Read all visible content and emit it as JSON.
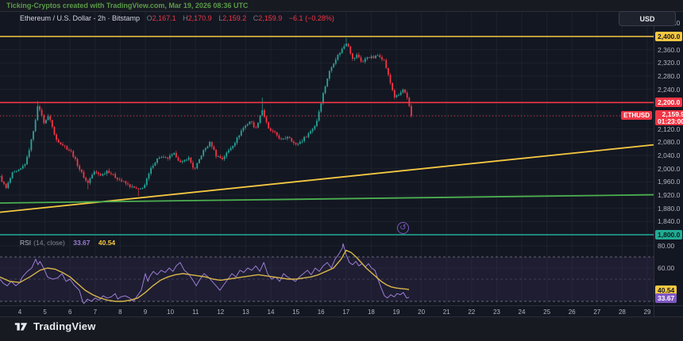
{
  "watermark": "Ticking-Cryptos created with TradingView.com, Mar 19, 2026 08:36 UTC",
  "toolbar": {
    "currency_label": "USD"
  },
  "legend": {
    "title": "Ethereum / U.S. Dollar - 2h · Bitstamp",
    "ohlc": [
      {
        "k": "O",
        "v": "2,167.1"
      },
      {
        "k": "H",
        "v": "2,170.9"
      },
      {
        "k": "L",
        "v": "2,159.2"
      },
      {
        "k": "C",
        "v": "2,159.9"
      }
    ],
    "change": "−6.1 (−0.28%)"
  },
  "price_scale": {
    "ticks": [
      {
        "label": "2,440.0",
        "value": 2440
      },
      {
        "label": "2,360.0",
        "value": 2360
      },
      {
        "label": "2,320.0",
        "value": 2320
      },
      {
        "label": "2,280.0",
        "value": 2280
      },
      {
        "label": "2,240.0",
        "value": 2240
      },
      {
        "label": "2,120.0",
        "value": 2120
      },
      {
        "label": "2,080.0",
        "value": 2080
      },
      {
        "label": "2,040.0",
        "value": 2040
      },
      {
        "label": "2,000.0",
        "value": 2000
      },
      {
        "label": "1,960.0",
        "value": 1960
      },
      {
        "label": "1,920.0",
        "value": 1920
      },
      {
        "label": "1,880.0",
        "value": 1880
      },
      {
        "label": "1,840.0",
        "value": 1840
      }
    ],
    "badge_yellow": "2,400.0",
    "badge_red": "2,200.0",
    "badge_teal": "1,800.0",
    "last_badge": {
      "symbol": "ETHUSD",
      "price": "2,159.9",
      "countdown": "01:23:00"
    }
  },
  "rsi_pane": {
    "title": "RSI",
    "params": "(14, close)",
    "purple_value": "33.67",
    "yellow_value": "40.54",
    "ticks": [
      {
        "label": "80.00",
        "value": 80
      },
      {
        "label": "60.00",
        "value": 60
      }
    ],
    "badge_yellow": "40.54",
    "badge_purple": "33.67"
  },
  "time_scale": {
    "days": [
      4,
      5,
      6,
      7,
      8,
      9,
      10,
      11,
      12,
      13,
      14,
      15,
      16,
      17,
      18,
      19,
      20,
      21,
      22,
      23,
      24,
      25,
      26,
      27,
      28,
      29
    ]
  },
  "footer": {
    "logo_text": "TradingView"
  },
  "replay_icon": {
    "glyph": "↺"
  },
  "colors": {
    "up": "#26a69a",
    "down": "#f23645",
    "yellow": "#f5c842",
    "teal": "#22ab94",
    "green": "#4caf50",
    "purple": "#7e57c2",
    "ma_yellow": "#d9b64a",
    "rsi_purple": "#9b7dd4",
    "watermark_green": "#5b9a4a",
    "chart_bg": "#131722",
    "axis_text": "#b2b5be"
  },
  "chart_data": [
    {
      "type": "candlestick",
      "symbol": "ETHUSD",
      "exchange": "Bitstamp",
      "interval": "2h",
      "x_axis": "Day of month, March 2026",
      "xlim": [
        3.2,
        29.25
      ],
      "ylim": [
        1800,
        2400
      ],
      "grid_step_price": 40,
      "last_ohlc": {
        "o": 2167.1,
        "h": 2170.9,
        "l": 2159.2,
        "c": 2159.9,
        "change": "−6.1",
        "change_pct": "−0.28%"
      },
      "close_waypoints": [
        [
          3.2,
          1975
        ],
        [
          3.45,
          1940
        ],
        [
          3.7,
          1985
        ],
        [
          4.0,
          1995
        ],
        [
          4.25,
          2020
        ],
        [
          4.5,
          2100
        ],
        [
          4.73,
          2195
        ],
        [
          4.95,
          2140
        ],
        [
          5.17,
          2160
        ],
        [
          5.42,
          2090
        ],
        [
          5.74,
          2070
        ],
        [
          6.06,
          2050
        ],
        [
          6.37,
          2000
        ],
        [
          6.69,
          1955
        ],
        [
          6.94,
          1990
        ],
        [
          7.26,
          1980
        ],
        [
          7.48,
          1995
        ],
        [
          7.8,
          1975
        ],
        [
          8.11,
          1960
        ],
        [
          8.43,
          1945
        ],
        [
          8.75,
          1935
        ],
        [
          8.97,
          1950
        ],
        [
          9.28,
          2010
        ],
        [
          9.54,
          2035
        ],
        [
          9.85,
          2030
        ],
        [
          10.17,
          2045
        ],
        [
          10.42,
          2015
        ],
        [
          10.71,
          2035
        ],
        [
          10.96,
          1995
        ],
        [
          11.28,
          2050
        ],
        [
          11.59,
          2080
        ],
        [
          11.82,
          2040
        ],
        [
          12.07,
          2030
        ],
        [
          12.32,
          2055
        ],
        [
          12.61,
          2085
        ],
        [
          12.86,
          2120
        ],
        [
          13.18,
          2145
        ],
        [
          13.4,
          2120
        ],
        [
          13.65,
          2180
        ],
        [
          13.9,
          2120
        ],
        [
          14.19,
          2105
        ],
        [
          14.44,
          2085
        ],
        [
          14.7,
          2100
        ],
        [
          14.98,
          2070
        ],
        [
          15.23,
          2085
        ],
        [
          15.55,
          2110
        ],
        [
          15.8,
          2135
        ],
        [
          16.06,
          2220
        ],
        [
          16.31,
          2290
        ],
        [
          16.56,
          2330
        ],
        [
          16.82,
          2360
        ],
        [
          17.04,
          2385
        ],
        [
          17.26,
          2330
        ],
        [
          17.45,
          2345
        ],
        [
          17.64,
          2320
        ],
        [
          17.86,
          2340
        ],
        [
          18.08,
          2335
        ],
        [
          18.3,
          2345
        ],
        [
          18.53,
          2325
        ],
        [
          18.72,
          2270
        ],
        [
          18.94,
          2215
        ],
        [
          19.13,
          2225
        ],
        [
          19.28,
          2240
        ],
        [
          19.44,
          2210
        ],
        [
          19.6,
          2159.9
        ]
      ],
      "spikes": [
        {
          "day": 4.73,
          "kind": "high",
          "price": 2205
        },
        {
          "day": 6.69,
          "kind": "low",
          "price": 1937
        },
        {
          "day": 8.75,
          "kind": "low",
          "price": 1917
        },
        {
          "day": 13.65,
          "kind": "high",
          "price": 2215
        },
        {
          "day": 17.04,
          "kind": "high",
          "price": 2396
        }
      ],
      "levels": [
        {
          "type": "hline",
          "value": 2400,
          "color": "#f5c842",
          "style": "solid"
        },
        {
          "type": "hline",
          "value": 2200,
          "color": "#f23645",
          "style": "solid"
        },
        {
          "type": "hline",
          "value": 2159.9,
          "color": "#f23645",
          "style": "dotted"
        },
        {
          "type": "hline",
          "value": 1800,
          "color": "#22ab94",
          "style": "solid"
        },
        {
          "type": "trendline",
          "points": [
            [
              3.2,
              1868
            ],
            [
              29.25,
              2072
            ]
          ],
          "color": "#f5c842"
        },
        {
          "type": "trendline",
          "points": [
            [
              3.2,
              1896
            ],
            [
              29.25,
              1921
            ]
          ],
          "color": "#4caf50"
        }
      ]
    },
    {
      "type": "line",
      "name": "RSI (14, close)",
      "last_value": 33.67,
      "ma_last_value": 40.54,
      "bands": [
        70,
        50,
        30
      ],
      "axis_ticks": [
        80,
        60
      ],
      "series": [
        {
          "name": "RSI",
          "color": "#9b7dd4",
          "points": [
            [
              3.2,
              50
            ],
            [
              3.35,
              46
            ],
            [
              3.5,
              44
            ],
            [
              3.65,
              48
            ],
            [
              3.84,
              44
            ],
            [
              4.0,
              47
            ],
            [
              4.1,
              52
            ],
            [
              4.3,
              57
            ],
            [
              4.47,
              60
            ],
            [
              4.55,
              64
            ],
            [
              4.63,
              68
            ],
            [
              4.72,
              63
            ],
            [
              4.8,
              66
            ],
            [
              4.95,
              60
            ],
            [
              5.1,
              52
            ],
            [
              5.3,
              50
            ],
            [
              5.5,
              51
            ],
            [
              5.68,
              55
            ],
            [
              5.84,
              48
            ],
            [
              6.0,
              50
            ],
            [
              6.15,
              45
            ],
            [
              6.37,
              40
            ],
            [
              6.5,
              30
            ],
            [
              6.55,
              28
            ],
            [
              6.69,
              32
            ],
            [
              6.85,
              30
            ],
            [
              7.0,
              33
            ],
            [
              7.16,
              31
            ],
            [
              7.32,
              35
            ],
            [
              7.48,
              33
            ],
            [
              7.64,
              34
            ],
            [
              7.8,
              37
            ],
            [
              7.9,
              32
            ],
            [
              8.02,
              34
            ],
            [
              8.2,
              35
            ],
            [
              8.37,
              33
            ],
            [
              8.53,
              30
            ],
            [
              8.65,
              34
            ],
            [
              8.84,
              40
            ],
            [
              9.0,
              55
            ],
            [
              9.1,
              48
            ],
            [
              9.16,
              52
            ],
            [
              9.32,
              57
            ],
            [
              9.47,
              54
            ],
            [
              9.63,
              58
            ],
            [
              9.79,
              56
            ],
            [
              9.95,
              60
            ],
            [
              10.1,
              57
            ],
            [
              10.23,
              62
            ],
            [
              10.39,
              65
            ],
            [
              10.55,
              58
            ],
            [
              10.71,
              55
            ],
            [
              10.87,
              50
            ],
            [
              11.03,
              44
            ],
            [
              11.18,
              50
            ],
            [
              11.34,
              55
            ],
            [
              11.5,
              52
            ],
            [
              11.66,
              48
            ],
            [
              11.82,
              44
            ],
            [
              11.97,
              40
            ],
            [
              12.13,
              45
            ],
            [
              12.29,
              50
            ],
            [
              12.45,
              55
            ],
            [
              12.61,
              52
            ],
            [
              12.77,
              58
            ],
            [
              12.92,
              56
            ],
            [
              13.08,
              60
            ],
            [
              13.24,
              58
            ],
            [
              13.4,
              62
            ],
            [
              13.56,
              57
            ],
            [
              13.72,
              65
            ],
            [
              13.87,
              55
            ],
            [
              14.03,
              50
            ],
            [
              14.19,
              52
            ],
            [
              14.35,
              48
            ],
            [
              14.51,
              55
            ],
            [
              14.66,
              52
            ],
            [
              14.82,
              50
            ],
            [
              14.98,
              48
            ],
            [
              15.14,
              52
            ],
            [
              15.3,
              55
            ],
            [
              15.46,
              58
            ],
            [
              15.61,
              54
            ],
            [
              15.77,
              60
            ],
            [
              15.93,
              57
            ],
            [
              16.09,
              62
            ],
            [
              16.25,
              65
            ],
            [
              16.41,
              60
            ],
            [
              16.56,
              68
            ],
            [
              16.72,
              73
            ],
            [
              16.85,
              78
            ],
            [
              16.88,
              82
            ],
            [
              17.0,
              72
            ],
            [
              17.13,
              65
            ],
            [
              17.26,
              63
            ],
            [
              17.39,
              66
            ],
            [
              17.51,
              62
            ],
            [
              17.64,
              64
            ],
            [
              17.77,
              61
            ],
            [
              17.89,
              64
            ],
            [
              18.02,
              60
            ],
            [
              18.15,
              58
            ],
            [
              18.27,
              50
            ],
            [
              18.4,
              42
            ],
            [
              18.53,
              35
            ],
            [
              18.65,
              33
            ],
            [
              18.78,
              36
            ],
            [
              18.91,
              34
            ],
            [
              19.03,
              37
            ],
            [
              19.16,
              36
            ],
            [
              19.28,
              38
            ],
            [
              19.41,
              33
            ],
            [
              19.51,
              33.67
            ]
          ]
        },
        {
          "name": "RSI-based MA",
          "color": "#d9b64a",
          "points": [
            [
              3.2,
              52
            ],
            [
              3.6,
              48
            ],
            [
              4.0,
              47
            ],
            [
              4.4,
              52
            ],
            [
              4.8,
              58
            ],
            [
              5.1,
              60
            ],
            [
              5.4,
              59
            ],
            [
              5.7,
              56
            ],
            [
              6.0,
              52
            ],
            [
              6.3,
              46
            ],
            [
              6.6,
              40
            ],
            [
              6.9,
              36
            ],
            [
              7.2,
              33
            ],
            [
              7.5,
              31
            ],
            [
              7.8,
              30
            ],
            [
              8.1,
              30
            ],
            [
              8.4,
              31
            ],
            [
              8.7,
              33
            ],
            [
              9.0,
              38
            ],
            [
              9.3,
              44
            ],
            [
              9.6,
              49
            ],
            [
              9.9,
              52
            ],
            [
              10.2,
              54
            ],
            [
              10.5,
              55
            ],
            [
              10.8,
              54
            ],
            [
              11.1,
              53
            ],
            [
              11.4,
              52
            ],
            [
              11.7,
              50
            ],
            [
              12.0,
              49
            ],
            [
              12.3,
              50
            ],
            [
              12.6,
              51
            ],
            [
              12.9,
              52
            ],
            [
              13.2,
              53
            ],
            [
              13.5,
              54
            ],
            [
              13.8,
              53
            ],
            [
              14.1,
              52
            ],
            [
              14.4,
              51
            ],
            [
              14.7,
              50
            ],
            [
              15.0,
              50
            ],
            [
              15.3,
              51
            ],
            [
              15.6,
              52
            ],
            [
              15.9,
              54
            ],
            [
              16.2,
              57
            ],
            [
              16.5,
              60
            ],
            [
              16.8,
              68
            ],
            [
              17.0,
              76
            ],
            [
              17.2,
              74
            ],
            [
              17.4,
              70
            ],
            [
              17.6,
              65
            ],
            [
              17.8,
              60
            ],
            [
              18.0,
              56
            ],
            [
              18.2,
              52
            ],
            [
              18.4,
              48
            ],
            [
              18.6,
              45
            ],
            [
              18.8,
              43
            ],
            [
              19.0,
              42
            ],
            [
              19.2,
              41.5
            ],
            [
              19.4,
              41
            ],
            [
              19.51,
              40.54
            ]
          ]
        }
      ]
    }
  ]
}
